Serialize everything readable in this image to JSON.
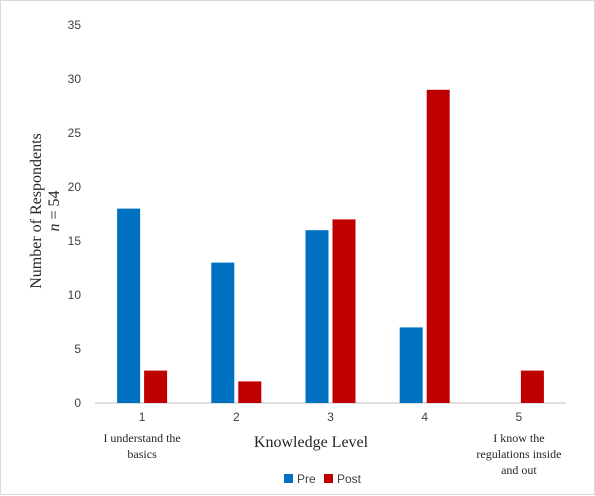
{
  "chart_data": {
    "type": "bar",
    "categories": [
      "1",
      "2",
      "3",
      "4",
      "5"
    ],
    "category_notes": [
      [
        "I understand the",
        "basics"
      ],
      [],
      [],
      [],
      [
        "I know the",
        "regulations inside",
        "and out"
      ]
    ],
    "series": [
      {
        "name": "Pre",
        "values": [
          18,
          13,
          16,
          7,
          0
        ],
        "color": "#0070C0"
      },
      {
        "name": "Post",
        "values": [
          3,
          2,
          17,
          29,
          3
        ],
        "color": "#C00000"
      }
    ],
    "xlabel": "Knowledge Level",
    "ylabel": "Number of Respondents",
    "ylabel_sub_italic": "n",
    "ylabel_sub_rest": " = 54",
    "ylim": [
      0,
      35
    ],
    "yticks": [
      0,
      5,
      10,
      15,
      20,
      25,
      30,
      35
    ],
    "grid": false,
    "legend_position": "bottom"
  }
}
